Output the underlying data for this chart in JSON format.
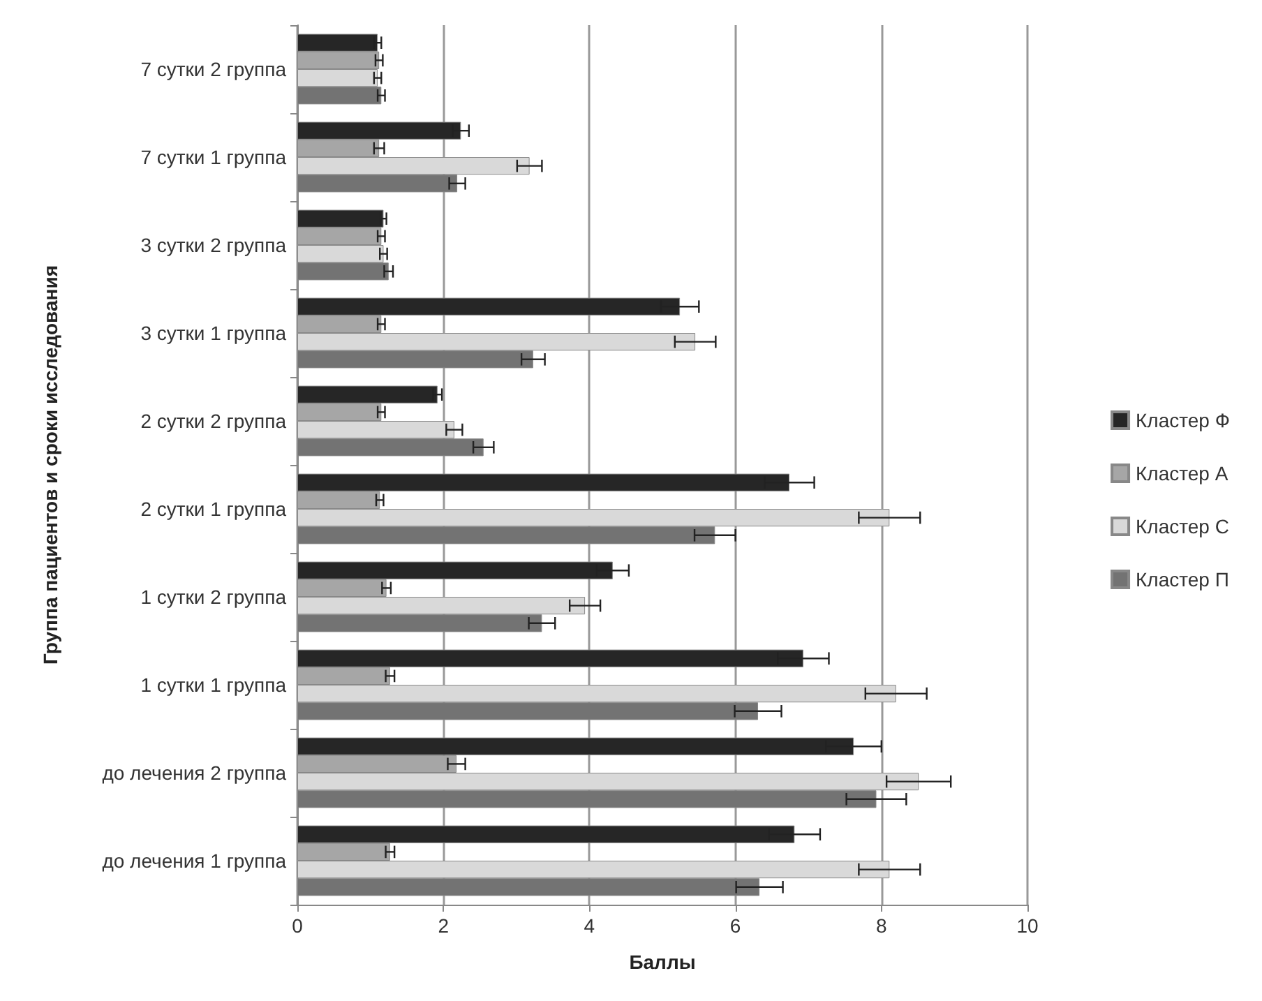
{
  "chart_data": {
    "type": "bar",
    "orientation": "horizontal",
    "xlabel": "Баллы",
    "ylabel": "Группа пациентов и сроки исследования",
    "categories": [
      "7 сутки 2 группа",
      "7 сутки 1 группа",
      "3 сутки 2 группа",
      "3 сутки 1 группа",
      "2 сутки 2 группа",
      "2 сутки 1 группа",
      "1 сутки 2 группа",
      "1 сутки 1 группа",
      "до лечения 2 группа",
      "до лечения 1 группа"
    ],
    "series": [
      {
        "name": "Кластер Ф",
        "color": "#262626",
        "values": [
          1.1,
          2.24,
          1.18,
          5.24,
          1.92,
          6.74,
          4.32,
          6.93,
          7.62,
          6.81
        ],
        "errors": [
          0.05,
          0.11,
          0.04,
          0.26,
          0.06,
          0.34,
          0.22,
          0.35,
          0.38,
          0.35
        ]
      },
      {
        "name": "Кластер А",
        "color": "#a6a6a6",
        "values": [
          1.12,
          1.12,
          1.15,
          1.15,
          1.15,
          1.13,
          1.22,
          1.27,
          2.18,
          1.27
        ],
        "errors": [
          0.05,
          0.07,
          0.05,
          0.05,
          0.05,
          0.05,
          0.06,
          0.06,
          0.12,
          0.06
        ]
      },
      {
        "name": "Кластер С",
        "color": "#d9d9d9",
        "values": [
          1.1,
          3.18,
          1.18,
          5.45,
          2.15,
          8.11,
          3.94,
          8.2,
          8.51,
          8.11
        ],
        "errors": [
          0.05,
          0.17,
          0.05,
          0.28,
          0.11,
          0.42,
          0.21,
          0.42,
          0.44,
          0.42
        ]
      },
      {
        "name": "Кластер П",
        "color": "#737373",
        "values": [
          1.15,
          2.19,
          1.25,
          3.23,
          2.55,
          5.72,
          3.35,
          6.31,
          7.93,
          6.33
        ],
        "errors": [
          0.05,
          0.11,
          0.06,
          0.16,
          0.14,
          0.28,
          0.18,
          0.32,
          0.41,
          0.32
        ]
      }
    ],
    "xlim": [
      0,
      10
    ],
    "xticks": [
      0,
      2,
      4,
      6,
      8,
      10
    ],
    "grid": "x",
    "legend": "right"
  }
}
